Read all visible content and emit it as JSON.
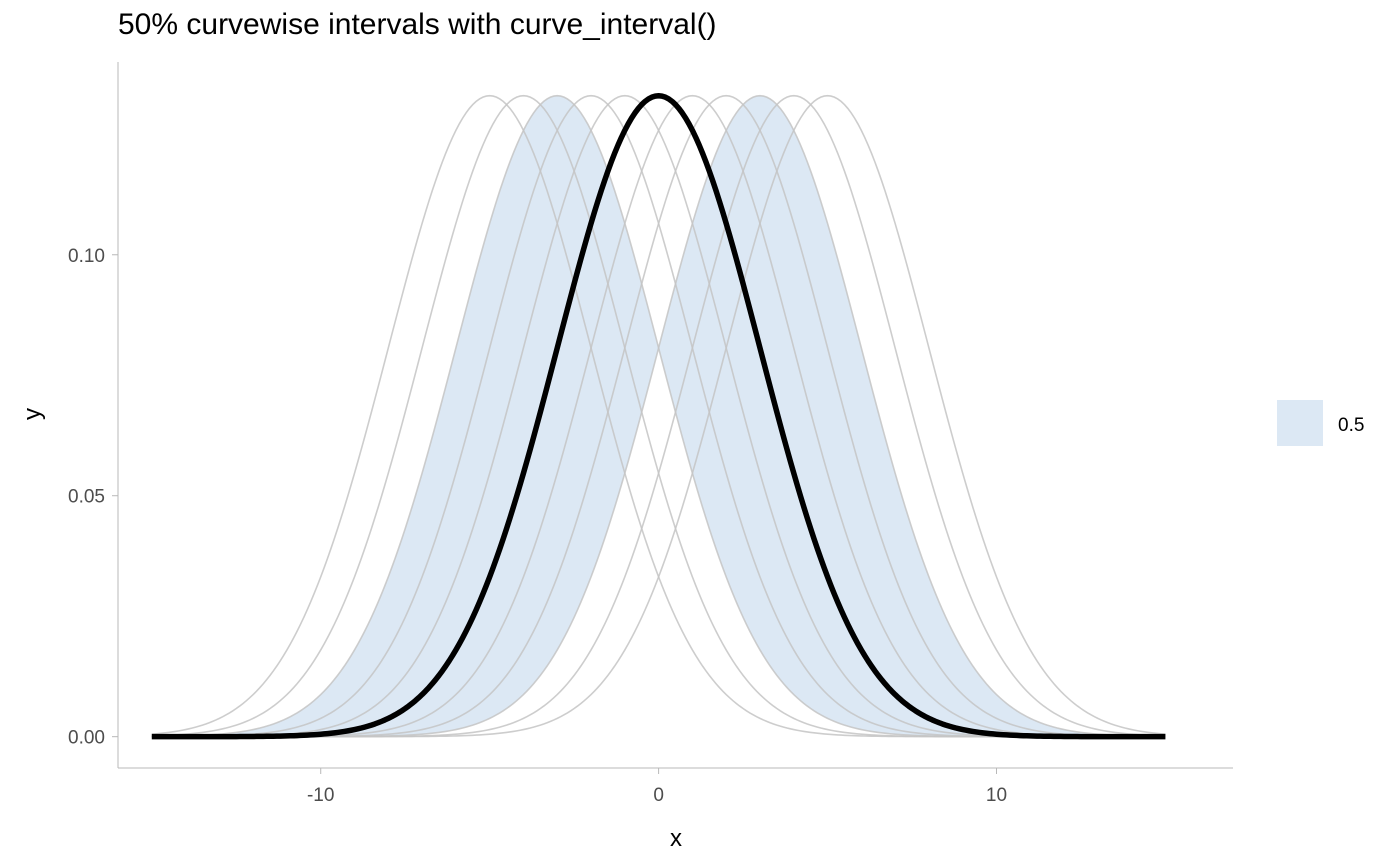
{
  "chart_data": {
    "type": "line",
    "title": "50% curvewise intervals with curve_interval()",
    "xlabel": "x",
    "ylabel": "y",
    "xlim": [
      -16,
      17
    ],
    "ylim": [
      -0.0065,
      0.14
    ],
    "x_ticks": [
      -10,
      0,
      10
    ],
    "x_tick_labels": [
      "-10",
      "0",
      "10"
    ],
    "y_ticks": [
      0,
      0.05,
      0.1
    ],
    "y_tick_labels": [
      "0.00",
      "0.05",
      "0.10"
    ],
    "grid": false,
    "x_range": [
      -15,
      15
    ],
    "sd": 3,
    "peak": 0.133,
    "draw_means": [
      -5,
      -4,
      -3,
      -2,
      -1,
      0,
      1,
      2,
      3,
      4,
      5
    ],
    "median_curve": {
      "mean": 0,
      "color": "#000000"
    },
    "interval_band": {
      "level": 0.5,
      "lower_mean": -3,
      "upper_mean": 3,
      "color": "#dce8f4"
    },
    "draw_color": "#c4c4c4",
    "legend": {
      "position": "right",
      "entries": [
        {
          "label": "0.5",
          "color": "#dce8f4"
        }
      ]
    }
  }
}
